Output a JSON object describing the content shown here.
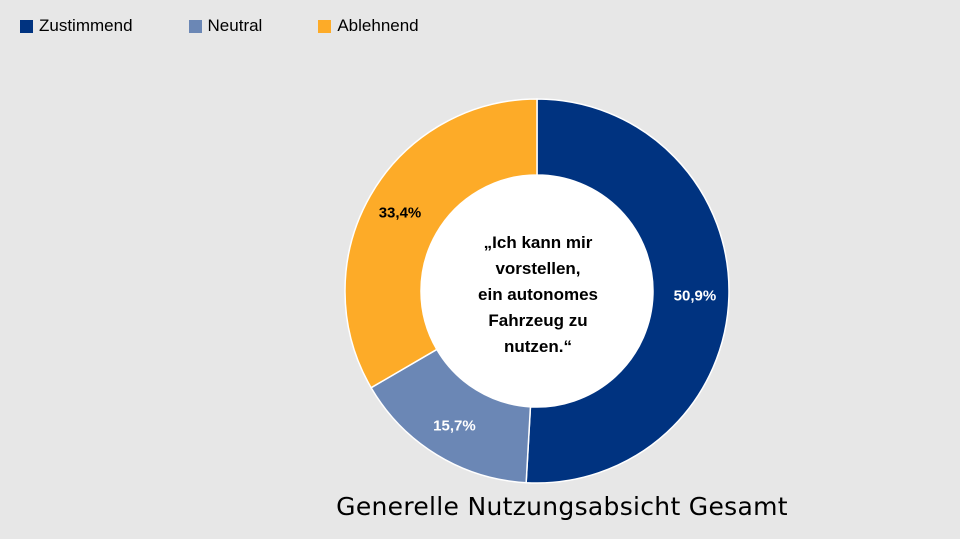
{
  "chart_data": {
    "type": "pie",
    "variant": "donut",
    "categories": [
      "Zustimmend",
      "Neutral",
      "Ablehnend"
    ],
    "values": [
      50.9,
      15.7,
      33.4
    ],
    "value_labels": [
      "50,9%",
      "15,7%",
      "33,4%"
    ],
    "colors": [
      "#003380",
      "#6b87b5",
      "#fdab28"
    ],
    "label_colors": [
      "#ffffff",
      "#ffffff",
      "#000000"
    ],
    "legend_position": "top-left",
    "center_text": "„Ich kann mir\nvorstellen,\nein autonomes\nFahrzeug zu\nnutzen.“",
    "caption": "Generelle Nutzungsabsicht Gesamt"
  },
  "legend": {
    "items": [
      {
        "label": "Zustimmend",
        "color": "#003380"
      },
      {
        "label": "Neutral",
        "color": "#6b87b5"
      },
      {
        "label": "Ablehnend",
        "color": "#fdab28"
      }
    ]
  }
}
